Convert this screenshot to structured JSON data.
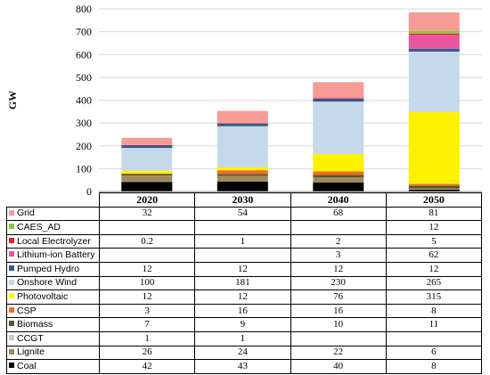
{
  "chart_data": {
    "type": "bar",
    "stacked": true,
    "ylabel": "GW",
    "ylim": [
      0,
      800
    ],
    "yticks": [
      0,
      100,
      200,
      300,
      400,
      500,
      600,
      700,
      800
    ],
    "grid": true,
    "categories": [
      "2020",
      "2030",
      "2040",
      "2050"
    ],
    "series": [
      {
        "name": "Coal",
        "color": "#000000",
        "values": [
          42,
          43,
          40,
          8
        ],
        "labels": [
          "42",
          "43",
          "40",
          "8"
        ]
      },
      {
        "name": "Lignite",
        "color": "#a08a5c",
        "values": [
          26,
          24,
          22,
          6
        ],
        "labels": [
          "26",
          "24",
          "22",
          "6"
        ]
      },
      {
        "name": "CCGT",
        "color": "#c8c8c8",
        "values": [
          1,
          1,
          0,
          0
        ],
        "labels": [
          "1",
          "1",
          "",
          ""
        ]
      },
      {
        "name": "Biomass",
        "color": "#4e5a2a",
        "values": [
          7,
          9,
          10,
          11
        ],
        "labels": [
          "7",
          "9",
          "10",
          "11"
        ]
      },
      {
        "name": "CSP",
        "color": "#f26b21",
        "values": [
          3,
          16,
          16,
          8
        ],
        "labels": [
          "3",
          "16",
          "16",
          "8"
        ]
      },
      {
        "name": "Photovoltaic",
        "color": "#fff200",
        "values": [
          12,
          12,
          76,
          315
        ],
        "labels": [
          "12",
          "12",
          "76",
          "315"
        ]
      },
      {
        "name": "Onshore Wind",
        "color": "#c5d9ea",
        "values": [
          100,
          181,
          230,
          265
        ],
        "labels": [
          "100",
          "181",
          "230",
          "265"
        ]
      },
      {
        "name": "Pumped Hydro",
        "color": "#2e5b8c",
        "values": [
          12,
          12,
          12,
          12
        ],
        "labels": [
          "12",
          "12",
          "12",
          "12"
        ]
      },
      {
        "name": "Lithium-ion Battery",
        "color": "#e9559e",
        "values": [
          0,
          0,
          3,
          62
        ],
        "labels": [
          "",
          "",
          "3",
          "62"
        ]
      },
      {
        "name": "Local Electrolyzer",
        "color": "#e31e24",
        "values": [
          0.2,
          1,
          2,
          5
        ],
        "labels": [
          "0.2",
          "1",
          "2",
          "5"
        ]
      },
      {
        "name": "CAES_AD",
        "color": "#8cc63f",
        "values": [
          0,
          0,
          0,
          12
        ],
        "labels": [
          "",
          "",
          "",
          "12"
        ]
      },
      {
        "name": "Grid",
        "color": "#f79b96",
        "values": [
          32,
          54,
          68,
          81
        ],
        "labels": [
          "32",
          "54",
          "68",
          "81"
        ]
      }
    ]
  }
}
